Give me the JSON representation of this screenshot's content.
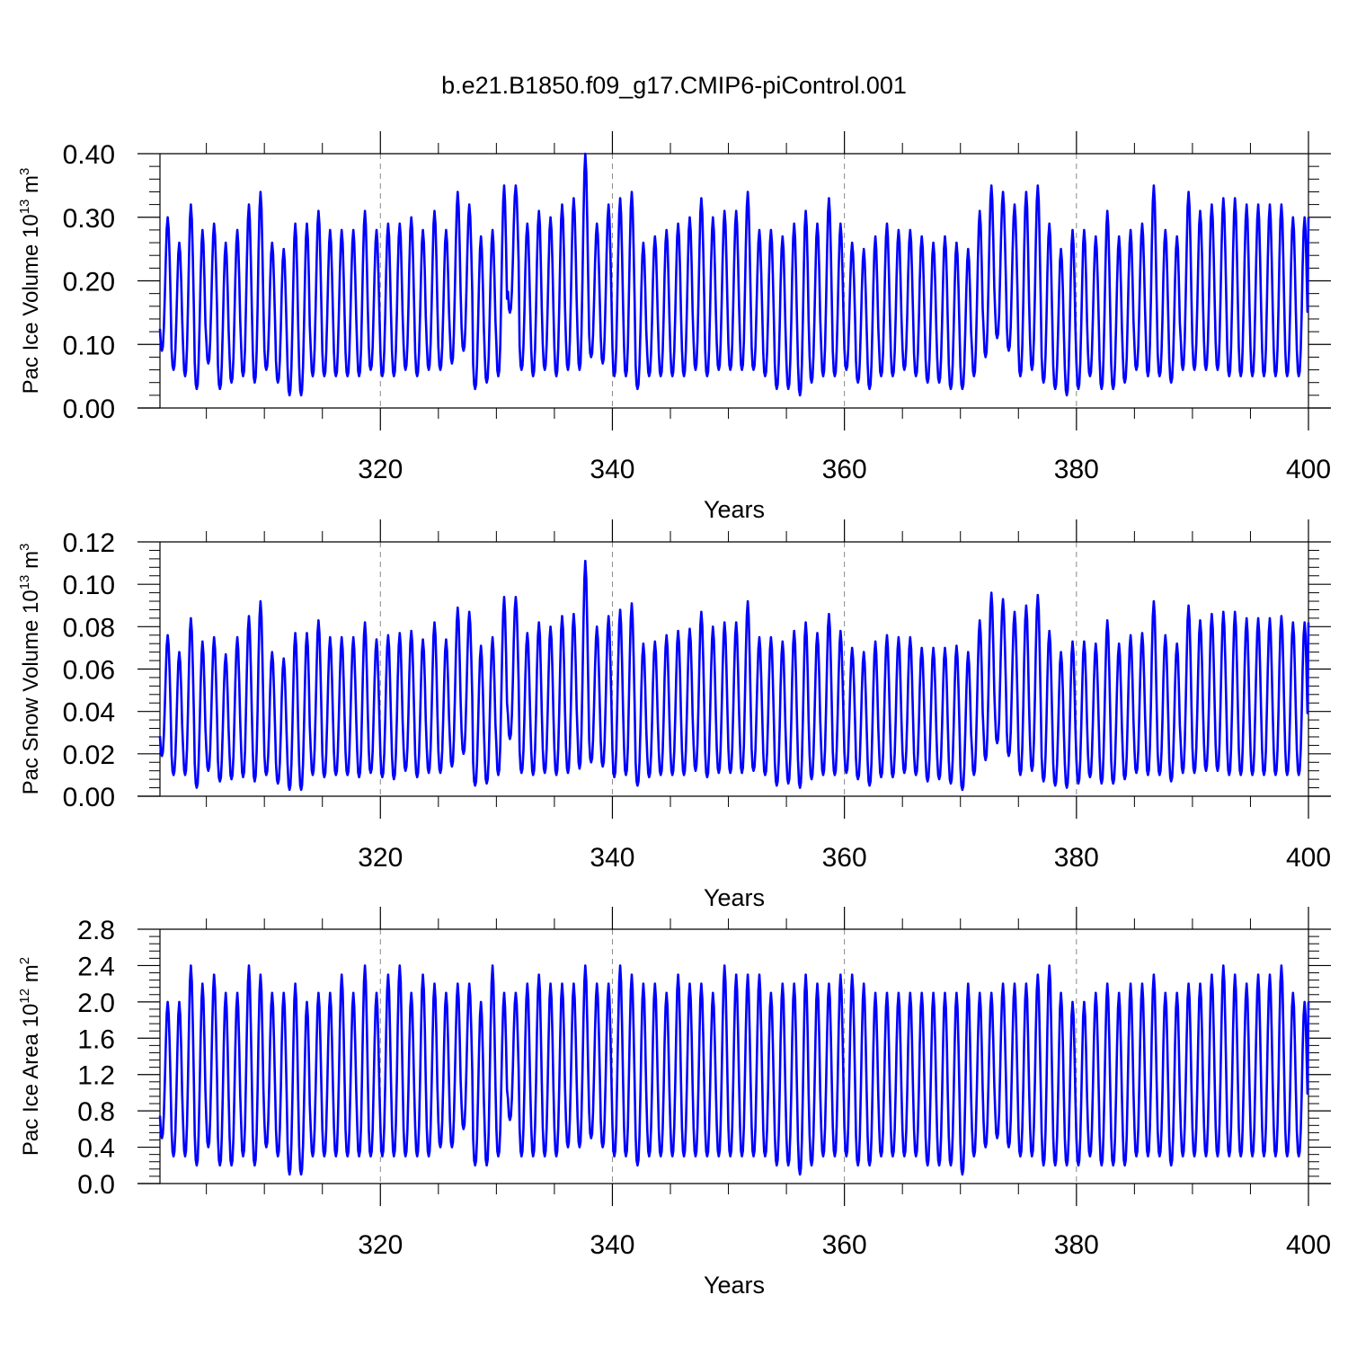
{
  "title": "b.e21.B1850.f09_g17.CMIP6-piControl.001",
  "colors": {
    "series": "#0000ff",
    "axis": "#000000",
    "gridline": "#888888"
  },
  "chart_data": [
    {
      "type": "line",
      "ylabel": {
        "text": "Pac Ice Volume 10",
        "exp": "13",
        "unit": " m",
        "unit_exp": "3"
      },
      "xlabel": "Years",
      "xlim": [
        301,
        400
      ],
      "ylim": [
        0,
        0.4
      ],
      "yticks": [
        "0.00",
        "0.10",
        "0.20",
        "0.30",
        "0.40"
      ],
      "yticks_values": [
        0,
        0.1,
        0.2,
        0.3,
        0.4
      ],
      "xticks": [
        "320",
        "340",
        "360",
        "380",
        "400"
      ],
      "xticks_values": [
        320,
        340,
        360,
        380,
        400
      ],
      "series": [
        {
          "name": "",
          "annual_peaks": [
            0.3,
            0.26,
            0.32,
            0.28,
            0.29,
            0.26,
            0.28,
            0.32,
            0.34,
            0.26,
            0.25,
            0.29,
            0.29,
            0.31,
            0.28,
            0.28,
            0.28,
            0.31,
            0.28,
            0.29,
            0.29,
            0.3,
            0.28,
            0.31,
            0.28,
            0.34,
            0.32,
            0.27,
            0.28,
            0.35,
            0.35,
            0.29,
            0.31,
            0.3,
            0.32,
            0.33,
            0.4,
            0.29,
            0.32,
            0.33,
            0.34,
            0.26,
            0.27,
            0.28,
            0.29,
            0.3,
            0.33,
            0.3,
            0.31,
            0.31,
            0.34,
            0.28,
            0.28,
            0.27,
            0.29,
            0.31,
            0.29,
            0.33,
            0.29,
            0.26,
            0.25,
            0.27,
            0.29,
            0.28,
            0.28,
            0.27,
            0.26,
            0.27,
            0.26,
            0.25,
            0.31,
            0.35,
            0.34,
            0.32,
            0.34,
            0.35,
            0.29,
            0.25,
            0.28,
            0.28,
            0.27,
            0.31,
            0.27,
            0.28,
            0.29,
            0.35,
            0.28,
            0.27,
            0.34,
            0.31,
            0.32,
            0.33,
            0.33,
            0.32,
            0.32,
            0.32,
            0.32,
            0.3,
            0.3
          ],
          "annual_mins": [
            0.09,
            0.06,
            0.05,
            0.03,
            0.07,
            0.03,
            0.04,
            0.05,
            0.04,
            0.06,
            0.04,
            0.02,
            0.02,
            0.05,
            0.05,
            0.05,
            0.05,
            0.05,
            0.06,
            0.05,
            0.05,
            0.06,
            0.05,
            0.06,
            0.06,
            0.07,
            0.09,
            0.03,
            0.04,
            0.05,
            0.15,
            0.06,
            0.05,
            0.06,
            0.05,
            0.06,
            0.06,
            0.08,
            0.07,
            0.05,
            0.05,
            0.03,
            0.05,
            0.05,
            0.05,
            0.05,
            0.06,
            0.05,
            0.06,
            0.06,
            0.06,
            0.06,
            0.05,
            0.03,
            0.03,
            0.02,
            0.04,
            0.05,
            0.05,
            0.06,
            0.04,
            0.03,
            0.05,
            0.05,
            0.06,
            0.05,
            0.04,
            0.04,
            0.03,
            0.03,
            0.05,
            0.08,
            0.11,
            0.09,
            0.05,
            0.06,
            0.04,
            0.03,
            0.02,
            0.03,
            0.05,
            0.03,
            0.03,
            0.04,
            0.06,
            0.05,
            0.05,
            0.04,
            0.06,
            0.06,
            0.06,
            0.06,
            0.05,
            0.05,
            0.05,
            0.05,
            0.05,
            0.05,
            0.05
          ]
        }
      ]
    },
    {
      "type": "line",
      "ylabel": {
        "text": "Pac Snow Volume 10",
        "exp": "13",
        "unit": " m",
        "unit_exp": "3"
      },
      "xlabel": "Years",
      "xlim": [
        301,
        400
      ],
      "ylim": [
        0,
        0.12
      ],
      "yticks": [
        "0.00",
        "0.02",
        "0.04",
        "0.06",
        "0.08",
        "0.10",
        "0.12"
      ],
      "yticks_values": [
        0,
        0.02,
        0.04,
        0.06,
        0.08,
        0.1,
        0.12
      ],
      "xticks": [
        "320",
        "340",
        "360",
        "380",
        "400"
      ],
      "xticks_values": [
        320,
        340,
        360,
        380,
        400
      ],
      "series": [
        {
          "name": "",
          "annual_peaks": [
            0.076,
            0.068,
            0.084,
            0.073,
            0.075,
            0.067,
            0.075,
            0.085,
            0.092,
            0.068,
            0.065,
            0.077,
            0.077,
            0.083,
            0.075,
            0.075,
            0.075,
            0.082,
            0.074,
            0.076,
            0.077,
            0.078,
            0.074,
            0.082,
            0.074,
            0.089,
            0.087,
            0.071,
            0.075,
            0.094,
            0.094,
            0.077,
            0.082,
            0.08,
            0.085,
            0.086,
            0.111,
            0.08,
            0.085,
            0.088,
            0.091,
            0.072,
            0.073,
            0.076,
            0.078,
            0.079,
            0.087,
            0.08,
            0.082,
            0.082,
            0.092,
            0.075,
            0.075,
            0.073,
            0.078,
            0.082,
            0.077,
            0.086,
            0.078,
            0.07,
            0.068,
            0.073,
            0.076,
            0.075,
            0.075,
            0.07,
            0.07,
            0.07,
            0.071,
            0.068,
            0.083,
            0.096,
            0.093,
            0.087,
            0.09,
            0.095,
            0.078,
            0.068,
            0.073,
            0.073,
            0.072,
            0.083,
            0.072,
            0.076,
            0.077,
            0.092,
            0.076,
            0.072,
            0.09,
            0.083,
            0.086,
            0.087,
            0.087,
            0.084,
            0.084,
            0.084,
            0.085,
            0.082,
            0.082
          ],
          "annual_mins": [
            0.019,
            0.01,
            0.01,
            0.004,
            0.012,
            0.007,
            0.008,
            0.009,
            0.007,
            0.01,
            0.006,
            0.003,
            0.003,
            0.01,
            0.009,
            0.01,
            0.01,
            0.009,
            0.011,
            0.009,
            0.008,
            0.012,
            0.009,
            0.011,
            0.011,
            0.014,
            0.02,
            0.005,
            0.006,
            0.01,
            0.027,
            0.011,
            0.01,
            0.011,
            0.01,
            0.011,
            0.013,
            0.016,
            0.014,
            0.009,
            0.01,
            0.005,
            0.009,
            0.01,
            0.01,
            0.01,
            0.012,
            0.009,
            0.011,
            0.011,
            0.011,
            0.012,
            0.01,
            0.005,
            0.006,
            0.004,
            0.008,
            0.01,
            0.01,
            0.011,
            0.008,
            0.005,
            0.009,
            0.009,
            0.011,
            0.01,
            0.007,
            0.008,
            0.006,
            0.003,
            0.01,
            0.017,
            0.025,
            0.019,
            0.01,
            0.012,
            0.007,
            0.005,
            0.004,
            0.006,
            0.009,
            0.006,
            0.006,
            0.008,
            0.011,
            0.01,
            0.01,
            0.007,
            0.011,
            0.011,
            0.012,
            0.012,
            0.01,
            0.01,
            0.01,
            0.01,
            0.01,
            0.01,
            0.01
          ]
        }
      ]
    },
    {
      "type": "line",
      "ylabel": {
        "text": "Pac Ice Area 10",
        "exp": "12",
        "unit": " m",
        "unit_exp": "2"
      },
      "xlabel": "Years",
      "xlim": [
        301,
        400
      ],
      "ylim": [
        0,
        2.8
      ],
      "yticks": [
        "0.0",
        "0.4",
        "0.8",
        "1.2",
        "1.6",
        "2.0",
        "2.4",
        "2.8"
      ],
      "yticks_values": [
        0,
        0.4,
        0.8,
        1.2,
        1.6,
        2.0,
        2.4,
        2.8
      ],
      "xticks": [
        "320",
        "340",
        "360",
        "380",
        "400"
      ],
      "xticks_values": [
        320,
        340,
        360,
        380,
        400
      ],
      "series": [
        {
          "name": "",
          "annual_peaks": [
            2.0,
            2.0,
            2.4,
            2.2,
            2.3,
            2.1,
            2.1,
            2.4,
            2.3,
            2.1,
            2.1,
            2.2,
            2.0,
            2.1,
            2.1,
            2.3,
            2.1,
            2.4,
            2.1,
            2.3,
            2.4,
            2.1,
            2.3,
            2.2,
            2.1,
            2.2,
            2.2,
            2.0,
            2.4,
            2.1,
            2.1,
            2.2,
            2.3,
            2.2,
            2.2,
            2.2,
            2.4,
            2.2,
            2.2,
            2.4,
            2.3,
            2.2,
            2.2,
            2.1,
            2.3,
            2.2,
            2.2,
            2.1,
            2.4,
            2.3,
            2.3,
            2.3,
            2.1,
            2.2,
            2.2,
            2.3,
            2.2,
            2.2,
            2.3,
            2.3,
            2.2,
            2.1,
            2.1,
            2.1,
            2.1,
            2.1,
            2.1,
            2.1,
            2.1,
            2.2,
            2.1,
            2.1,
            2.2,
            2.2,
            2.2,
            2.3,
            2.4,
            2.1,
            2.0,
            2.0,
            2.1,
            2.2,
            2.1,
            2.2,
            2.2,
            2.3,
            2.1,
            2.1,
            2.2,
            2.2,
            2.3,
            2.4,
            2.3,
            2.2,
            2.3,
            2.3,
            2.4,
            2.1,
            2.0
          ],
          "annual_mins": [
            0.5,
            0.3,
            0.3,
            0.2,
            0.4,
            0.2,
            0.2,
            0.3,
            0.2,
            0.4,
            0.3,
            0.1,
            0.1,
            0.3,
            0.3,
            0.3,
            0.3,
            0.3,
            0.3,
            0.3,
            0.3,
            0.3,
            0.3,
            0.3,
            0.4,
            0.4,
            0.6,
            0.2,
            0.2,
            0.3,
            0.7,
            0.3,
            0.3,
            0.3,
            0.3,
            0.4,
            0.4,
            0.5,
            0.4,
            0.3,
            0.3,
            0.2,
            0.3,
            0.3,
            0.3,
            0.3,
            0.3,
            0.3,
            0.3,
            0.3,
            0.3,
            0.3,
            0.3,
            0.2,
            0.2,
            0.1,
            0.2,
            0.3,
            0.3,
            0.3,
            0.2,
            0.2,
            0.3,
            0.3,
            0.3,
            0.3,
            0.2,
            0.2,
            0.2,
            0.1,
            0.3,
            0.4,
            0.5,
            0.4,
            0.3,
            0.3,
            0.2,
            0.2,
            0.2,
            0.2,
            0.3,
            0.2,
            0.2,
            0.2,
            0.3,
            0.3,
            0.3,
            0.2,
            0.3,
            0.3,
            0.3,
            0.3,
            0.3,
            0.3,
            0.3,
            0.3,
            0.3,
            0.3,
            0.3
          ]
        }
      ]
    }
  ]
}
